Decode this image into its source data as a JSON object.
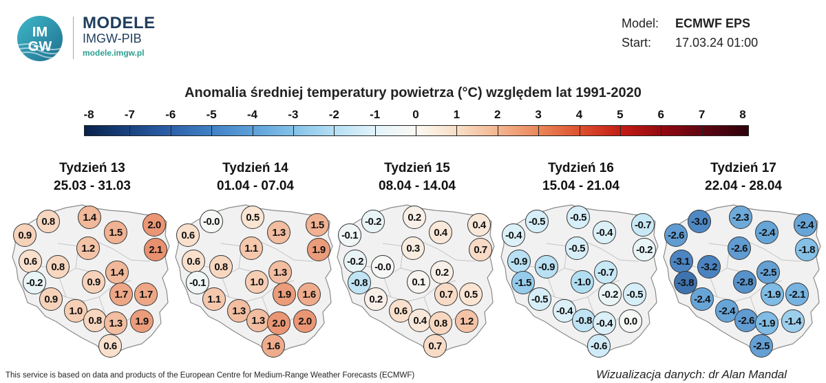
{
  "brand": {
    "logo_text_top": "IM",
    "logo_text_bottom": "GW",
    "title": "MODELE",
    "subtitle": "IMGW-PIB",
    "url": "modele.imgw.pl"
  },
  "model": {
    "model_label": "Model:",
    "model_value": "ECMWF EPS",
    "start_label": "Start:",
    "start_value": "17.03.24 01:00"
  },
  "title": "Anomalia średniej temperatury powietrza (°C) względem lat 1991-2020",
  "scale": {
    "labels": [
      "-8",
      "-7",
      "-6",
      "-5",
      "-4",
      "-3",
      "-2",
      "-1",
      "0",
      "1",
      "2",
      "3",
      "4",
      "5",
      "6",
      "7",
      "8"
    ]
  },
  "panels": [
    {
      "week": "Tydzień 13",
      "dates": "25.03 - 31.03",
      "values": [
        "0.9",
        "0.8",
        "1.4",
        "1.5",
        "2.0",
        "2.1",
        "1.2",
        "0.6",
        "0.8",
        "1.4",
        "-0.2",
        "0.9",
        "1.7",
        "1.7",
        "0.9",
        "1.0",
        "0.8",
        "1.3",
        "1.9",
        "0.6"
      ]
    },
    {
      "week": "Tydzień 14",
      "dates": "01.04 - 07.04",
      "values": [
        "0.6",
        "-0.0",
        "0.5",
        "1.3",
        "1.5",
        "1.9",
        "1.1",
        "0.6",
        "0.8",
        "1.3",
        "-0.1",
        "1.0",
        "1.9",
        "1.6",
        "1.1",
        "1.3",
        "1.3",
        "2.0",
        "2.0",
        "1.6"
      ]
    },
    {
      "week": "Tydzień 15",
      "dates": "08.04 - 14.04",
      "values": [
        "-0.1",
        "-0.2",
        "0.2",
        "0.4",
        "0.4",
        "0.7",
        "0.3",
        "-0.2",
        "-0.0",
        "0.2",
        "-0.8",
        "0.1",
        "0.7",
        "0.5",
        "0.2",
        "0.6",
        "0.4",
        "0.8",
        "1.2",
        "0.7"
      ]
    },
    {
      "week": "Tydzień 16",
      "dates": "15.04 - 21.04",
      "values": [
        "-0.4",
        "-0.5",
        "-0.5",
        "-0.4",
        "-0.7",
        "-0.2",
        "-0.5",
        "-0.9",
        "-0.9",
        "-0.7",
        "-1.5",
        "-1.0",
        "-0.2",
        "-0.5",
        "-0.5",
        "-0.4",
        "-0.8",
        "-0.4",
        "0.0",
        "-0.6"
      ]
    },
    {
      "week": "Tydzień 17",
      "dates": "22.04 - 28.04",
      "values": [
        "-2.6",
        "-3.0",
        "-2.3",
        "-2.4",
        "-2.4",
        "-1.8",
        "-2.6",
        "-3.1",
        "-3.2",
        "-2.5",
        "-3.8",
        "-2.8",
        "-1.9",
        "-2.1",
        "-2.4",
        "-2.4",
        "-2.6",
        "-1.9",
        "-1.4",
        "-2.5"
      ]
    }
  ],
  "footer": {
    "left": "This service is based on data and products of the European Centre for Medium-Range Weather Forecasts (ECMWF)",
    "right": "Wizualizacja danych: dr Alan Mandal"
  }
}
